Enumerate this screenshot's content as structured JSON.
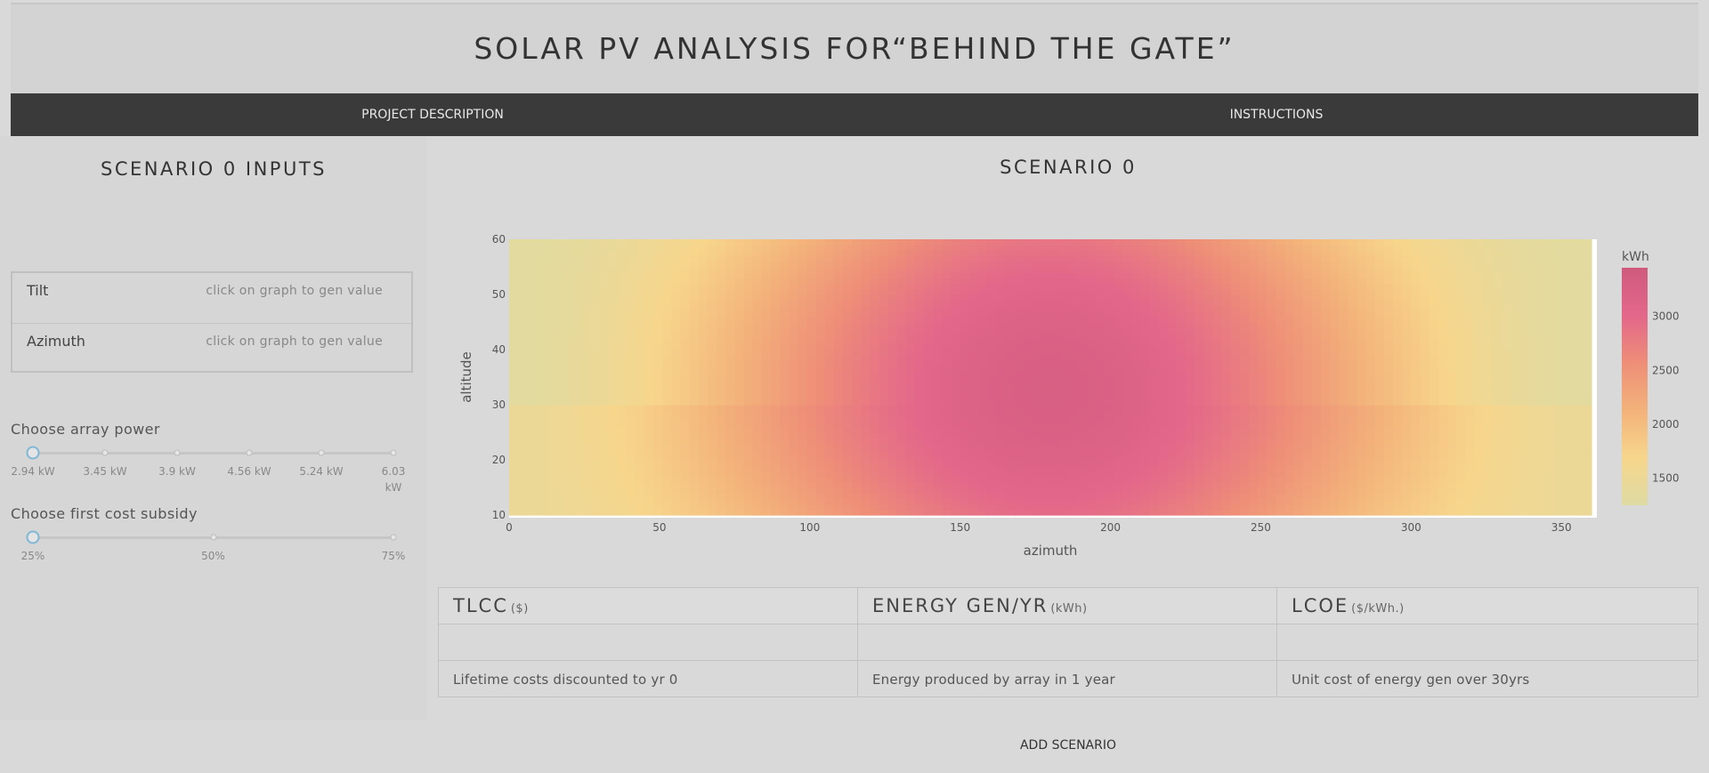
{
  "header": {
    "title": "SOLAR PV ANALYSIS FOR“BEHIND THE GATE”"
  },
  "nav": {
    "project_description": "PROJECT DESCRIPTION",
    "instructions": "INSTRUCTIONS"
  },
  "left": {
    "title": "SCENARIO 0 INPUTS",
    "tilt": {
      "label": "Tilt",
      "value": "click on graph to gen value"
    },
    "azimuth": {
      "label": "Azimuth",
      "value": "click on graph to gen value"
    },
    "array_power": {
      "label": "Choose array power",
      "marks": [
        "2.94 kW",
        "3.45 kW",
        "3.9 kW",
        "4.56 kW",
        "5.24 kW",
        "6.03 kW"
      ],
      "selected_index": 0
    },
    "subsidy": {
      "label": "Choose first cost subsidy",
      "marks": [
        "25%",
        "50%",
        "75%"
      ],
      "selected_index": 0
    }
  },
  "scenario": {
    "title": "SCENARIO 0"
  },
  "chart_data": {
    "type": "heatmap",
    "xlabel": "azimuth",
    "ylabel": "altitude",
    "colorbar_title": "kWh",
    "xlim": [
      0,
      360
    ],
    "ylim": [
      10,
      60
    ],
    "xticks": [
      "0",
      "50",
      "100",
      "150",
      "200",
      "250",
      "300",
      "350"
    ],
    "yticks": [
      "10",
      "20",
      "30",
      "40",
      "50",
      "60"
    ],
    "colorbar_ticks": [
      "1500",
      "2000",
      "2500",
      "3000"
    ],
    "zlim": [
      1250,
      3450
    ],
    "peak": {
      "azimuth": 180,
      "altitude": 33,
      "value": 3400
    },
    "colorscale": [
      "#dedba3",
      "#f7d68c",
      "#f3b27a",
      "#ee8e78",
      "#e3678a",
      "#cf5a7e"
    ],
    "grid": false
  },
  "metrics": [
    {
      "name": "TLCC",
      "unit": "($)",
      "value": "",
      "desc": "Lifetime costs discounted to yr 0"
    },
    {
      "name": "ENERGY GEN/YR",
      "unit": "(kWh)",
      "value": "",
      "desc": "Energy produced by array in 1 year"
    },
    {
      "name": "LCOE",
      "unit": "($/kWh.)",
      "value": "",
      "desc": "Unit cost of energy gen over 30yrs"
    }
  ],
  "actions": {
    "add_scenario": "ADD SCENARIO"
  }
}
